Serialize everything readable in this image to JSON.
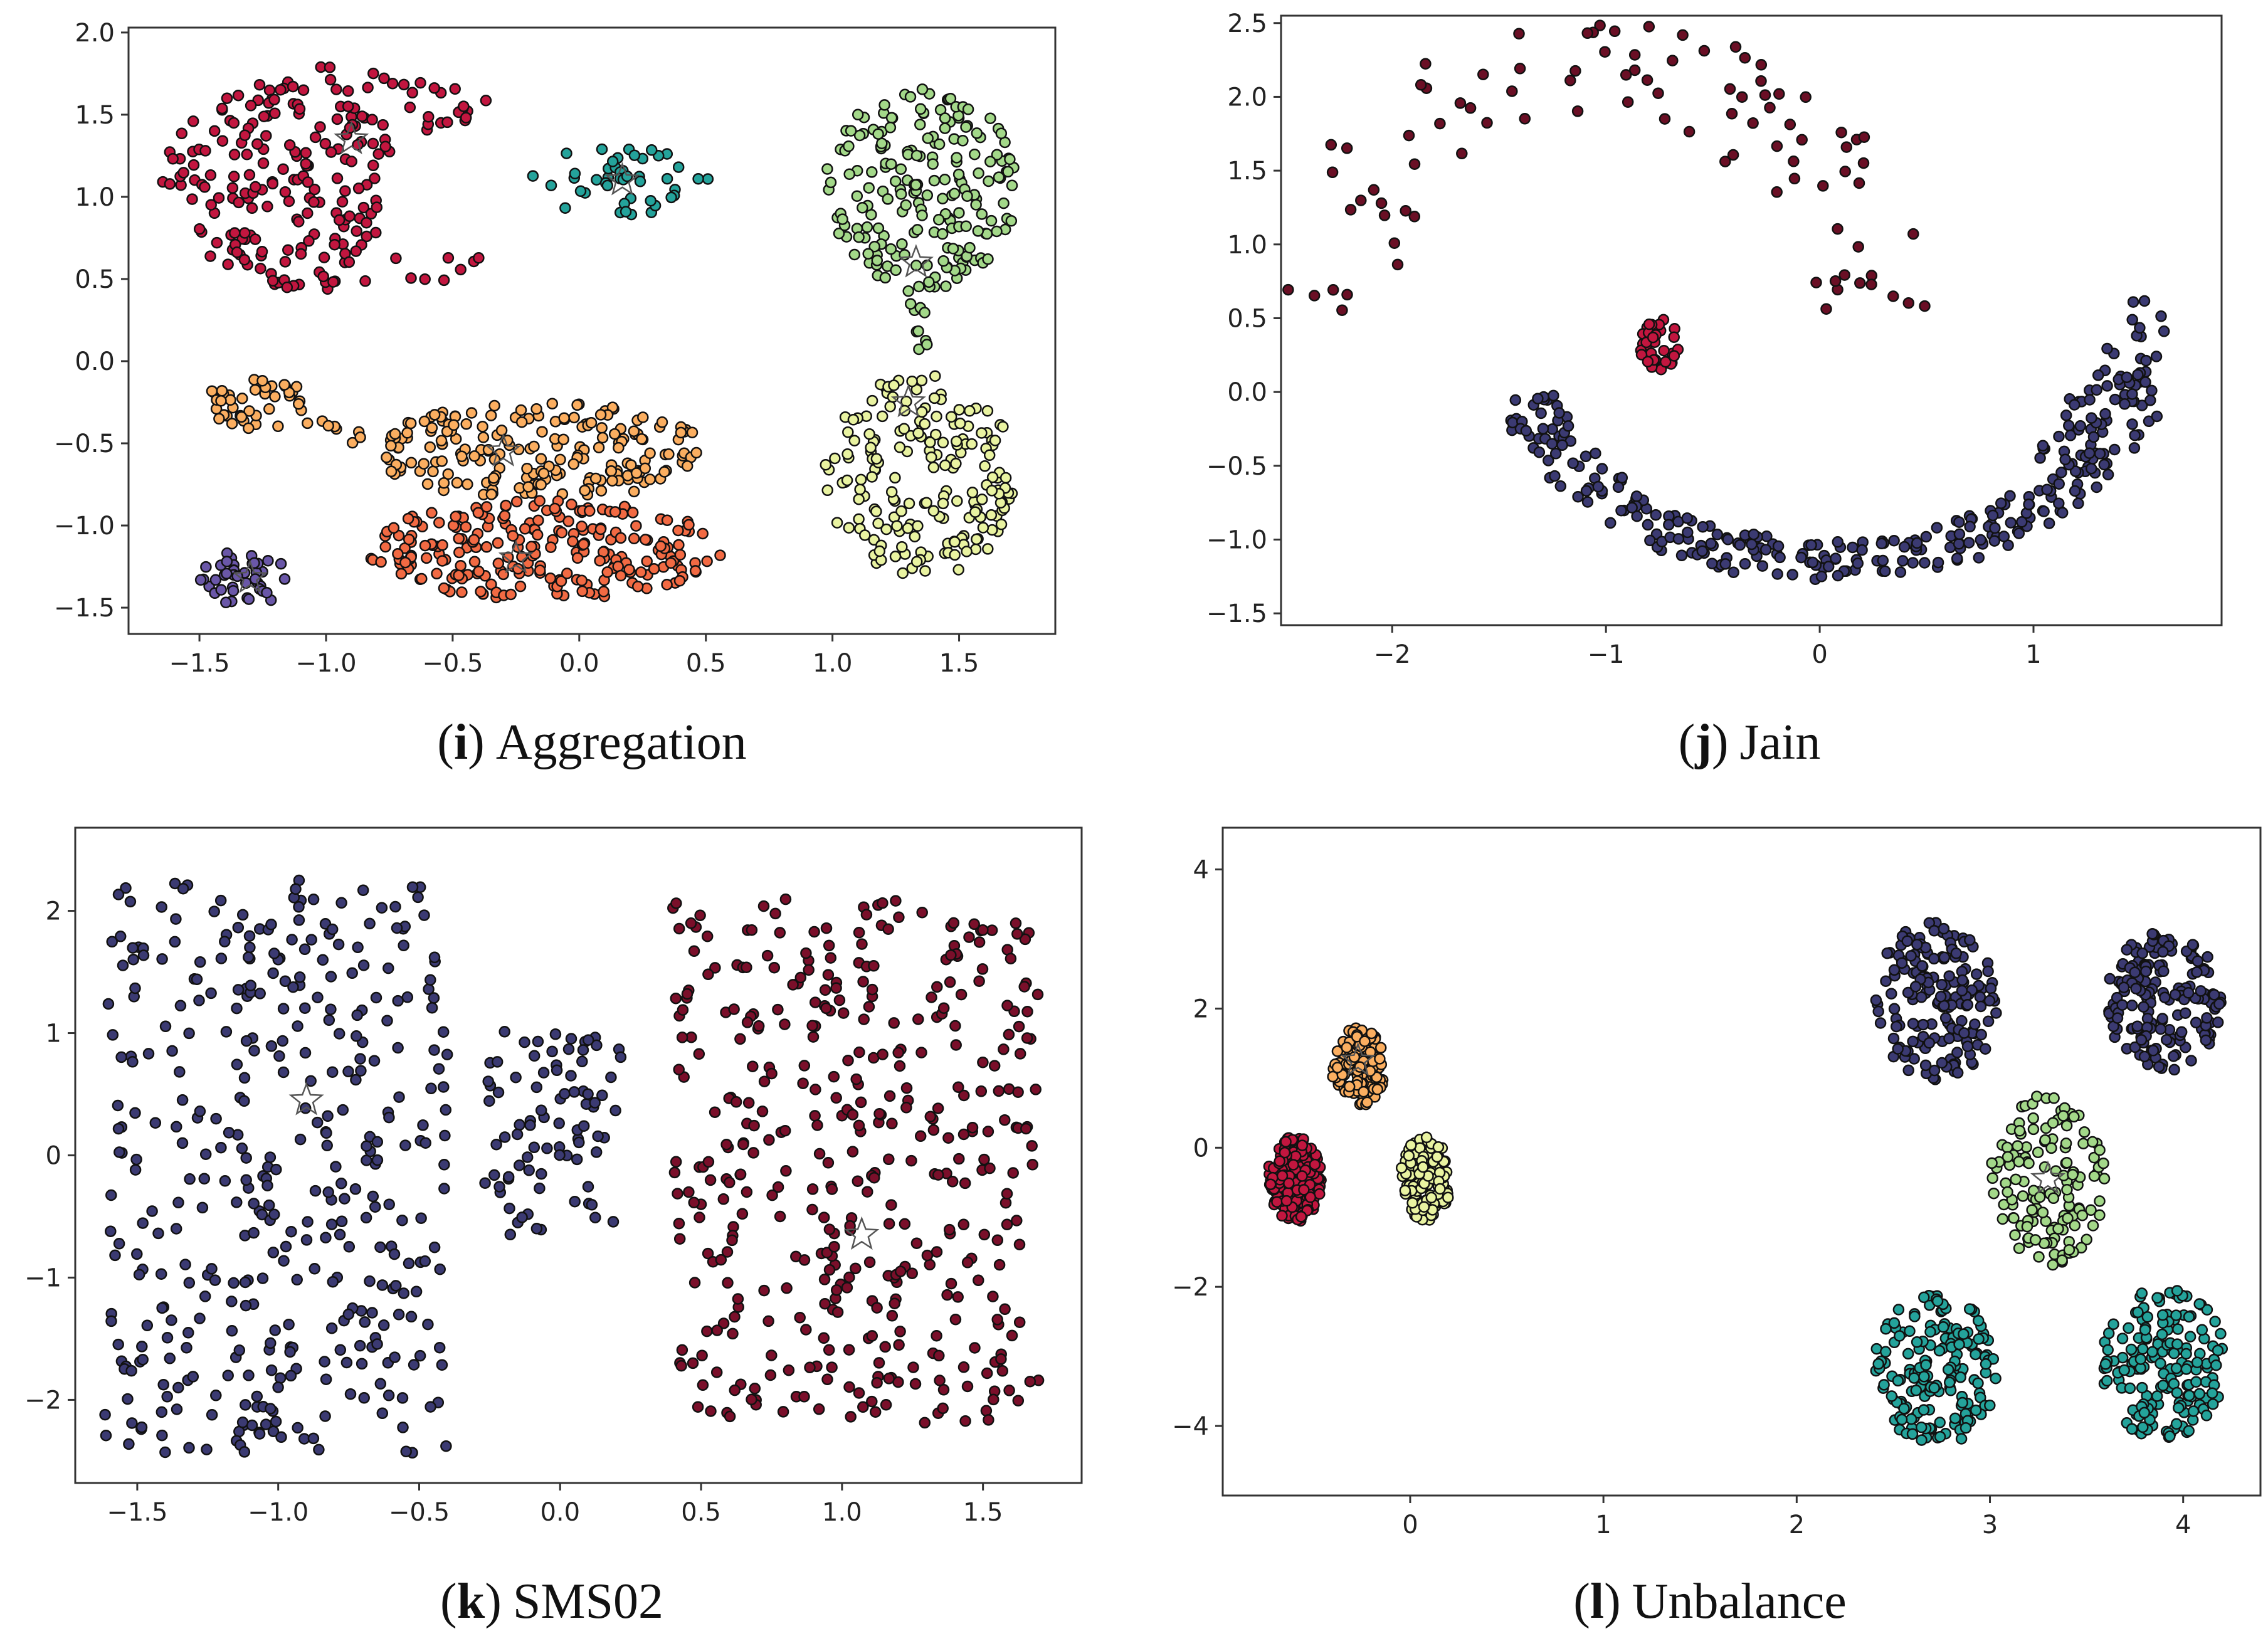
{
  "chart_data": [
    {
      "id": "aggregation",
      "type": "scatter",
      "caption": {
        "open": "(",
        "letter": "i",
        "close": ")",
        "title": "Aggregation"
      },
      "title": "",
      "xlabel": "",
      "ylabel": "",
      "xlim": [
        -1.78,
        1.88
      ],
      "ylim": [
        -1.66,
        2.03
      ],
      "xticks": [
        -1.5,
        -1.0,
        -0.5,
        0.0,
        0.5,
        1.0,
        1.5
      ],
      "xtick_labels": [
        "−1.5",
        "−1.0",
        "−0.5",
        "0.0",
        "0.5",
        "1.0",
        "1.5"
      ],
      "yticks": [
        -1.5,
        -1.0,
        -0.5,
        0.0,
        0.5,
        1.0,
        1.5,
        2.0
      ],
      "ytick_labels": [
        "−1.5",
        "−1.0",
        "−0.5",
        "0.0",
        "0.5",
        "1.0",
        "1.5",
        "2.0"
      ],
      "grid": false,
      "clusters": [
        {
          "name": "red-crescent",
          "color": "#c2163f",
          "shape": "crescent",
          "center": [
            -0.9,
            1.1
          ],
          "rx": 0.75,
          "ry": 0.7,
          "cutCenter": [
            -0.38,
            1.05
          ],
          "cutR": 0.42,
          "count": 230
        },
        {
          "name": "teal-blob",
          "color": "#24a39b",
          "shape": "ellipse",
          "center": [
            0.17,
            1.1
          ],
          "rx": 0.36,
          "ry": 0.22,
          "count": 45
        },
        {
          "name": "green-circle",
          "color": "#a3d889",
          "shape": "ellipse",
          "center": [
            1.35,
            1.05
          ],
          "rx": 0.38,
          "ry": 0.62,
          "count": 200
        },
        {
          "name": "green-bridge",
          "color": "#a3d889",
          "shape": "line",
          "from": [
            1.32,
            0.45
          ],
          "to": [
            1.37,
            0.0
          ],
          "spread": 0.03,
          "count": 10
        },
        {
          "name": "yellow-circle",
          "color": "#e9f3a1",
          "shape": "ellipse",
          "center": [
            1.35,
            -0.7
          ],
          "rx": 0.38,
          "ry": 0.62,
          "count": 190
        },
        {
          "name": "orange-tail",
          "color": "#fbae60",
          "shape": "ellipse",
          "center": [
            -1.27,
            -0.25
          ],
          "rx": 0.2,
          "ry": 0.17,
          "count": 40
        },
        {
          "name": "orange-link",
          "color": "#fbae60",
          "shape": "line",
          "from": [
            -1.05,
            -0.35
          ],
          "to": [
            -0.85,
            -0.5
          ],
          "spread": 0.05,
          "count": 8
        },
        {
          "name": "orange-top",
          "color": "#fbae60",
          "shape": "ellipse",
          "center": [
            -0.15,
            -0.55
          ],
          "rx": 0.65,
          "ry": 0.3,
          "count": 200
        },
        {
          "name": "salmon-bottom",
          "color": "#f26a43",
          "shape": "ellipse",
          "center": [
            -0.15,
            -1.15
          ],
          "rx": 0.72,
          "ry": 0.3,
          "count": 240
        },
        {
          "name": "purple-small",
          "color": "#6a57a8",
          "shape": "ellipse",
          "center": [
            -1.32,
            -1.32
          ],
          "rx": 0.18,
          "ry": 0.17,
          "count": 45
        }
      ],
      "centroids": [
        [
          -0.9,
          1.35
        ],
        [
          0.17,
          1.1
        ],
        [
          1.33,
          0.6
        ],
        [
          1.3,
          -0.25
        ],
        [
          -0.3,
          -0.55
        ],
        [
          -0.25,
          -1.2
        ],
        [
          -1.3,
          -1.32
        ]
      ]
    },
    {
      "id": "jain",
      "type": "scatter",
      "caption": {
        "open": "(",
        "letter": "j",
        "close": ")",
        "title": "Jain"
      },
      "title": "",
      "xlabel": "",
      "ylabel": "",
      "xlim": [
        -2.52,
        1.88
      ],
      "ylim": [
        -1.58,
        2.55
      ],
      "xticks": [
        -2,
        -1,
        0,
        1
      ],
      "xtick_labels": [
        "−2",
        "−1",
        "0",
        "1"
      ],
      "yticks": [
        -1.5,
        -1.0,
        -0.5,
        0.0,
        0.5,
        1.0,
        1.5,
        2.0,
        2.5
      ],
      "ytick_labels": [
        "−1.5",
        "−1.0",
        "−0.5",
        "0.0",
        "0.5",
        "1.0",
        "1.5",
        "2.0",
        "2.5"
      ],
      "grid": false,
      "clusters": [
        {
          "name": "upper-arc",
          "color": "#6a0f25",
          "shape": "arc",
          "center": [
            -1.05,
            0.55
          ],
          "rx": 1.25,
          "ry": 1.65,
          "t0": 0.0,
          "t1": 3.14,
          "spread": 0.32,
          "count": 95
        },
        {
          "name": "red-knot",
          "color": "#c2163f",
          "shape": "ellipse",
          "center": [
            -0.75,
            0.32
          ],
          "rx": 0.09,
          "ry": 0.18,
          "count": 35
        },
        {
          "name": "lower-arc",
          "color": "#3b3a72",
          "shape": "arc",
          "center": [
            0.05,
            0.45
          ],
          "rx": 1.5,
          "ry": 1.6,
          "t0": 3.45,
          "t1": 6.05,
          "spread": 0.14,
          "count": 270
        },
        {
          "name": "right-arm",
          "color": "#3b3a72",
          "shape": "line",
          "from": [
            1.1,
            -0.6
          ],
          "to": [
            1.6,
            0.6
          ],
          "spread": 0.12,
          "count": 55
        }
      ],
      "centroids": []
    },
    {
      "id": "sms02",
      "type": "scatter",
      "caption": {
        "open": "(",
        "letter": "k",
        "close": ")",
        "title": "SMS02"
      },
      "title": "",
      "xlabel": "",
      "ylabel": "",
      "xlim": [
        -1.72,
        1.85
      ],
      "ylim": [
        -2.68,
        2.68
      ],
      "xticks": [
        -1.5,
        -1.0,
        -0.5,
        0.0,
        0.5,
        1.0,
        1.5
      ],
      "xtick_labels": [
        "−1.5",
        "−1.0",
        "−0.5",
        "0.0",
        "0.5",
        "1.0",
        "1.5"
      ],
      "yticks": [
        -2,
        -1,
        0,
        1,
        2
      ],
      "ytick_labels": [
        "−2",
        "−1",
        "0",
        "1",
        "2"
      ],
      "grid": false,
      "clusters": [
        {
          "name": "left-block",
          "color": "#3b3a72",
          "shape": "rect",
          "x": [
            -1.62,
            -0.4
          ],
          "y": [
            -2.45,
            2.25
          ],
          "count": 400
        },
        {
          "name": "middle-block",
          "color": "#3b3a72",
          "shape": "rect",
          "x": [
            -0.27,
            0.22
          ],
          "y": [
            -0.65,
            1.02
          ],
          "count": 85
        },
        {
          "name": "right-block",
          "color": "#7a0f2a",
          "shape": "rect",
          "x": [
            0.4,
            1.7
          ],
          "y": [
            -2.2,
            2.1
          ],
          "count": 420
        }
      ],
      "centroids": [
        [
          -0.9,
          0.45
        ],
        [
          1.07,
          -0.65
        ]
      ]
    },
    {
      "id": "unbalance",
      "type": "scatter",
      "caption": {
        "open": "(",
        "letter": "l",
        "close": ")",
        "title": "Unbalance"
      },
      "title": "",
      "xlabel": "",
      "ylabel": "",
      "xlim": [
        -0.97,
        4.4
      ],
      "ylim": [
        -5.0,
        4.6
      ],
      "xticks": [
        0,
        1,
        2,
        3,
        4
      ],
      "xtick_labels": [
        "0",
        "1",
        "2",
        "3",
        "4"
      ],
      "yticks": [
        -4,
        -2,
        0,
        2,
        4
      ],
      "ytick_labels": [
        "−4",
        "−2",
        "0",
        "2",
        "4"
      ],
      "grid": false,
      "clusters": [
        {
          "name": "red-dense",
          "color": "#c2163f",
          "shape": "ellipse",
          "center": [
            -0.6,
            -0.45
          ],
          "rx": 0.14,
          "ry": 0.62,
          "count": 210
        },
        {
          "name": "orange-dense",
          "color": "#fbae60",
          "shape": "ellipse",
          "center": [
            -0.27,
            1.15
          ],
          "rx": 0.14,
          "ry": 0.58,
          "count": 140
        },
        {
          "name": "yellow-dense",
          "color": "#e9f3a1",
          "shape": "ellipse",
          "center": [
            0.08,
            -0.45
          ],
          "rx": 0.13,
          "ry": 0.6,
          "count": 140
        },
        {
          "name": "purple-top-left",
          "color": "#3b3a72",
          "shape": "ellipse",
          "center": [
            2.72,
            2.1
          ],
          "rx": 0.32,
          "ry": 1.15,
          "count": 170
        },
        {
          "name": "purple-top-right",
          "color": "#3b3a72",
          "shape": "ellipse",
          "center": [
            3.9,
            2.1
          ],
          "rx": 0.3,
          "ry": 1.0,
          "count": 170
        },
        {
          "name": "green-middle",
          "color": "#a3d889",
          "shape": "ellipse",
          "center": [
            3.3,
            -0.45
          ],
          "rx": 0.3,
          "ry": 1.25,
          "count": 140
        },
        {
          "name": "teal-bottom-left",
          "color": "#24a39b",
          "shape": "ellipse",
          "center": [
            2.72,
            -3.2
          ],
          "rx": 0.32,
          "ry": 1.1,
          "count": 170
        },
        {
          "name": "teal-bottom-right",
          "color": "#24a39b",
          "shape": "ellipse",
          "center": [
            3.9,
            -3.1
          ],
          "rx": 0.32,
          "ry": 1.1,
          "count": 170
        }
      ],
      "centroids": [
        [
          -0.27,
          1.25
        ],
        [
          3.3,
          -0.45
        ]
      ]
    }
  ]
}
